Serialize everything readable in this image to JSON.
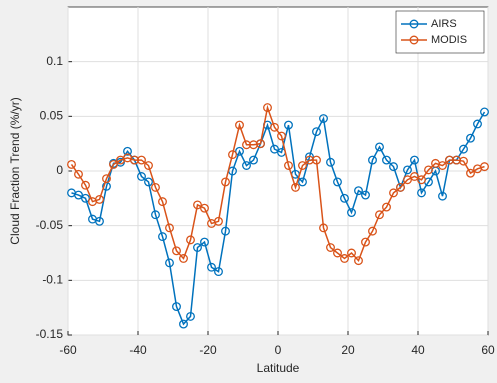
{
  "chart_data": {
    "type": "line",
    "xlabel": "Latitude",
    "ylabel": "Cloud Fraction Trend (%/yr)",
    "x": [
      -59,
      -57,
      -55,
      -53,
      -51,
      -49,
      -47,
      -45,
      -43,
      -41,
      -39,
      -37,
      -35,
      -33,
      -31,
      -29,
      -27,
      -25,
      -23,
      -21,
      -19,
      -17,
      -15,
      -13,
      -11,
      -9,
      -7,
      -5,
      -3,
      -1,
      1,
      3,
      5,
      7,
      9,
      11,
      13,
      15,
      17,
      19,
      21,
      23,
      25,
      27,
      29,
      31,
      33,
      35,
      37,
      39,
      41,
      43,
      45,
      47,
      49,
      51,
      53,
      55,
      57,
      59
    ],
    "series": [
      {
        "name": "AIRS",
        "color": "#0072bd",
        "values": [
          -0.02,
          -0.022,
          -0.025,
          -0.044,
          -0.046,
          -0.014,
          0.007,
          0.008,
          0.018,
          0.01,
          -0.005,
          -0.01,
          -0.04,
          -0.06,
          -0.084,
          -0.124,
          -0.14,
          -0.133,
          -0.07,
          -0.065,
          -0.088,
          -0.092,
          -0.055,
          0,
          0.018,
          0.005,
          0.01,
          0.025,
          0.042,
          0.02,
          0.017,
          0.042,
          -0.003,
          -0.01,
          0.013,
          0.036,
          0.048,
          0.008,
          -0.01,
          -0.025,
          -0.038,
          -0.018,
          -0.022,
          0.01,
          0.022,
          0.01,
          0.004,
          -0.015,
          0.001,
          0.01,
          -0.02,
          -0.01,
          0,
          -0.023,
          0.01,
          0.01,
          0.02,
          0.03,
          0.043,
          0.054
        ]
      },
      {
        "name": "MODIS",
        "color": "#d95319",
        "values": [
          0.006,
          -0.003,
          -0.013,
          -0.028,
          -0.026,
          -0.007,
          0.006,
          0.01,
          0.012,
          0.01,
          0.01,
          0.005,
          -0.015,
          -0.028,
          -0.052,
          -0.073,
          -0.08,
          -0.063,
          -0.031,
          -0.034,
          -0.048,
          -0.046,
          -0.01,
          0.015,
          0.042,
          0.024,
          0.024,
          0.025,
          0.058,
          0.04,
          0.032,
          0.005,
          -0.015,
          0.005,
          0.01,
          0.01,
          -0.052,
          -0.07,
          -0.075,
          -0.08,
          -0.075,
          -0.082,
          -0.065,
          -0.055,
          -0.04,
          -0.033,
          -0.02,
          -0.015,
          -0.008,
          -0.005,
          -0.008,
          0.001,
          0.007,
          0.005,
          0.01,
          0.01,
          0.009,
          -0.002,
          0.002,
          0.004
        ]
      }
    ],
    "xlim": [
      -60,
      60
    ],
    "xticks": [
      -60,
      -40,
      -20,
      0,
      20,
      40,
      60
    ],
    "ylim": [
      -0.15,
      0.15
    ],
    "yticks": [
      -0.15,
      -0.1,
      -0.05,
      0,
      0.05,
      0.1
    ],
    "grid": true,
    "legend": "upper-right"
  }
}
